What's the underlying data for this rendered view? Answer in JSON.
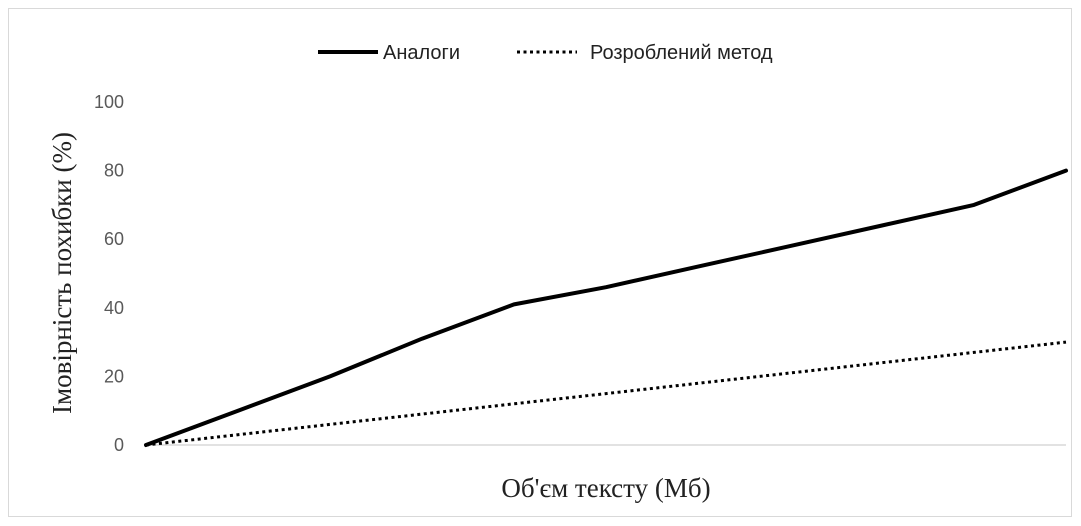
{
  "chart_data": {
    "type": "line",
    "title": "",
    "xlabel": "Об'єм тексту (Мб)",
    "ylabel": "Імовірність похибки (%)",
    "ylim": [
      0,
      100
    ],
    "yticks": [
      "0",
      "20",
      "40",
      "60",
      "80",
      "100"
    ],
    "x": [
      0,
      0.1,
      0.2,
      0.3,
      0.4,
      0.5,
      0.6,
      0.7,
      0.8,
      0.9,
      1.0
    ],
    "grid": false,
    "legend_position": "top",
    "series": [
      {
        "name": "Аналоги",
        "style": "solid",
        "color": "#000000",
        "values": [
          0,
          10,
          20,
          31,
          41,
          46,
          52,
          58,
          64,
          70,
          80
        ]
      },
      {
        "name": "Розроблений метод",
        "style": "dotted",
        "color": "#000000",
        "values": [
          0,
          3,
          6,
          9,
          12,
          15,
          18,
          21,
          24,
          27,
          30
        ]
      }
    ]
  }
}
